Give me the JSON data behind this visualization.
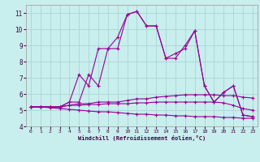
{
  "x": [
    0,
    1,
    2,
    3,
    4,
    5,
    6,
    7,
    8,
    9,
    10,
    11,
    12,
    13,
    14,
    15,
    16,
    17,
    18,
    19,
    20,
    21,
    22,
    23
  ],
  "series1": [
    5.2,
    5.2,
    5.2,
    5.2,
    5.5,
    7.2,
    6.5,
    8.8,
    8.8,
    9.5,
    10.9,
    11.1,
    10.2,
    10.2,
    8.2,
    8.2,
    9.0,
    9.9,
    6.5,
    5.5,
    6.1,
    6.5,
    4.7,
    4.6
  ],
  "series2": [
    5.2,
    5.2,
    5.2,
    5.2,
    5.5,
    5.5,
    7.2,
    6.5,
    8.8,
    8.8,
    10.9,
    11.1,
    10.2,
    10.2,
    8.2,
    8.5,
    8.8,
    9.9,
    6.5,
    5.5,
    6.1,
    6.5,
    4.7,
    4.6
  ],
  "series3": [
    5.2,
    5.2,
    5.2,
    5.2,
    5.3,
    5.4,
    5.4,
    5.5,
    5.5,
    5.5,
    5.6,
    5.7,
    5.7,
    5.8,
    5.85,
    5.9,
    5.95,
    5.95,
    5.95,
    5.95,
    5.9,
    5.9,
    5.8,
    5.75
  ],
  "series4": [
    5.2,
    5.2,
    5.2,
    5.2,
    5.3,
    5.3,
    5.35,
    5.35,
    5.4,
    5.4,
    5.4,
    5.45,
    5.45,
    5.5,
    5.5,
    5.5,
    5.5,
    5.5,
    5.5,
    5.5,
    5.45,
    5.3,
    5.1,
    5.0
  ],
  "series5": [
    5.2,
    5.2,
    5.15,
    5.1,
    5.05,
    5.0,
    4.95,
    4.9,
    4.9,
    4.85,
    4.8,
    4.75,
    4.75,
    4.7,
    4.7,
    4.65,
    4.65,
    4.6,
    4.6,
    4.6,
    4.55,
    4.55,
    4.5,
    4.5
  ],
  "color": "#990099",
  "bg_color": "#c8eeed",
  "grid_color": "#aed8d8",
  "xlabel": "Windchill (Refroidissement éolien,°C)",
  "ylim": [
    4,
    11.5
  ],
  "xlim": [
    -0.5,
    23.5
  ],
  "yticks": [
    4,
    5,
    6,
    7,
    8,
    9,
    10,
    11
  ],
  "xticks": [
    0,
    1,
    2,
    3,
    4,
    5,
    6,
    7,
    8,
    9,
    10,
    11,
    12,
    13,
    14,
    15,
    16,
    17,
    18,
    19,
    20,
    21,
    22,
    23
  ]
}
